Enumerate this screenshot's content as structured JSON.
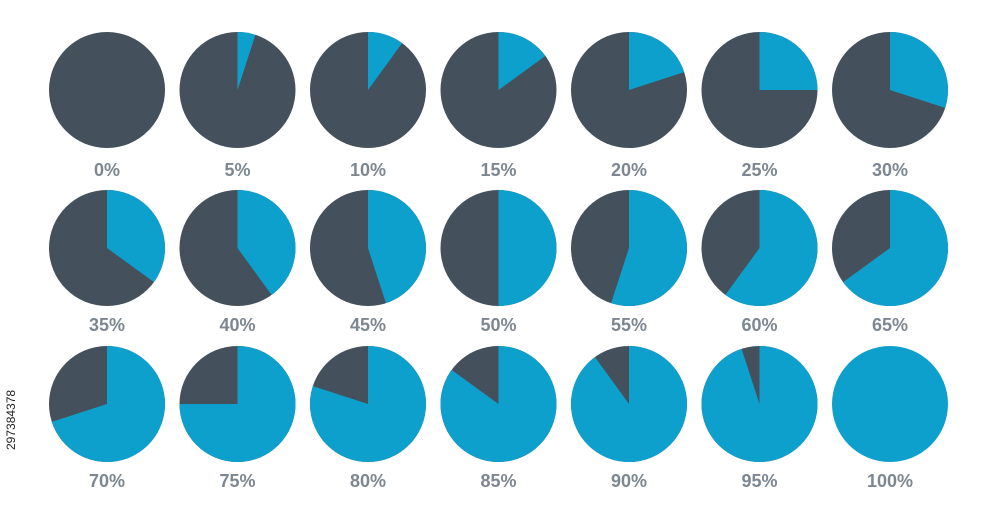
{
  "stock_id": "297384378",
  "colors": {
    "remaining": "#44505b",
    "filled": "#0ea0cd",
    "label": "#7d8791"
  },
  "chart_data": {
    "type": "pie",
    "layout": "grid",
    "rows": 3,
    "columns": 7,
    "pies": [
      {
        "label": "0%",
        "value": 0
      },
      {
        "label": "5%",
        "value": 5
      },
      {
        "label": "10%",
        "value": 10
      },
      {
        "label": "15%",
        "value": 15
      },
      {
        "label": "20%",
        "value": 20
      },
      {
        "label": "25%",
        "value": 25
      },
      {
        "label": "30%",
        "value": 30
      },
      {
        "label": "35%",
        "value": 35
      },
      {
        "label": "40%",
        "value": 40
      },
      {
        "label": "45%",
        "value": 45
      },
      {
        "label": "50%",
        "value": 50
      },
      {
        "label": "55%",
        "value": 55
      },
      {
        "label": "60%",
        "value": 60
      },
      {
        "label": "65%",
        "value": 65
      },
      {
        "label": "70%",
        "value": 70
      },
      {
        "label": "75%",
        "value": 75
      },
      {
        "label": "80%",
        "value": 80
      },
      {
        "label": "85%",
        "value": 85
      },
      {
        "label": "90%",
        "value": 90
      },
      {
        "label": "95%",
        "value": 95
      },
      {
        "label": "100%",
        "value": 100
      }
    ]
  }
}
